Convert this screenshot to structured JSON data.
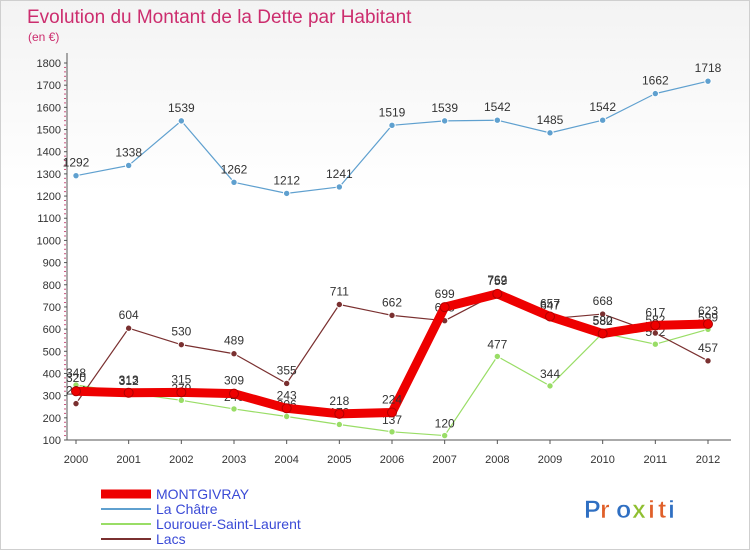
{
  "chart_data": {
    "type": "line",
    "title": "Evolution du Montant de la Dette par Habitant",
    "subtitle": "(en €)",
    "x": [
      "2000",
      "2001",
      "2002",
      "2003",
      "2004",
      "2005",
      "2006",
      "2007",
      "2008",
      "2009",
      "2010",
      "2011",
      "2012"
    ],
    "yticks": [
      "100",
      "200",
      "300",
      "400",
      "500",
      "600",
      "700",
      "800",
      "900",
      "1000",
      "1100",
      "1200",
      "1300",
      "1400",
      "1500",
      "1600",
      "1700",
      "1800"
    ],
    "ylim": [
      100,
      1800
    ],
    "grid": false,
    "legend_position": "bottom-left",
    "series": [
      {
        "name": "MONTGIVRAY",
        "color": "#ee0000",
        "values": [
          320,
          313,
          315,
          309,
          243,
          218,
          224,
          699,
          759,
          657,
          580,
          617,
          623
        ]
      },
      {
        "name": "La Châtre",
        "color": "#5fa0cf",
        "values": [
          1292,
          1338,
          1539,
          1262,
          1212,
          1241,
          1519,
          1539,
          1542,
          1485,
          1542,
          1662,
          1718
        ]
      },
      {
        "name": "Lourouer-Saint-Laurent",
        "color": "#99dd66",
        "values": [
          348,
          312,
          279,
          240,
          206,
          170,
          137,
          120,
          477,
          344,
          582,
          532,
          599
        ]
      },
      {
        "name": "Lacs",
        "color": "#7a3030",
        "values": [
          264,
          604,
          530,
          489,
          355,
          711,
          662,
          638,
          762,
          647,
          668,
          582,
          457
        ]
      }
    ]
  },
  "logo": {
    "text": "Proxiti",
    "letter_colors": [
      "#2f6fc2",
      "#e0602a",
      "#2f6fc2",
      "#8fbf30",
      "#e0602a",
      "#e0602a",
      "#2f6fc2"
    ]
  }
}
